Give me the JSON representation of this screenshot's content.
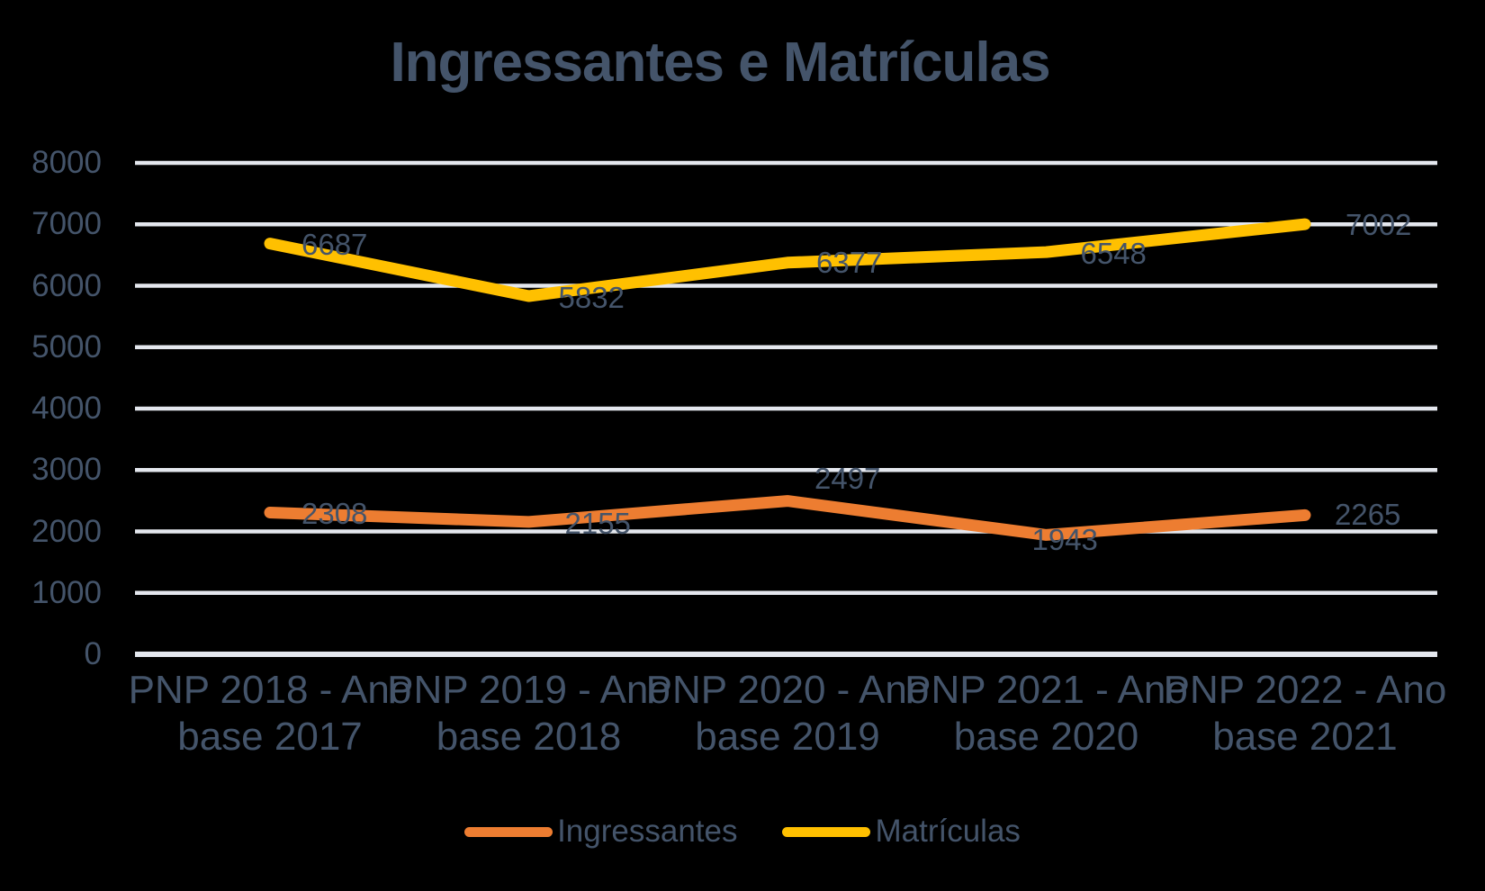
{
  "title": "Ingressantes e Matrículas",
  "colors": {
    "background": "#000000",
    "text": "#44546A",
    "gridline": "#E4E7EE",
    "series_ingressantes": "#ED7D31",
    "series_matriculas": "#FFC000"
  },
  "chart_data": {
    "type": "line",
    "title": "Ingressantes e Matrículas",
    "categories": [
      "PNP 2018 - Ano base 2017",
      "PNP 2019 - Ano base 2018",
      "PNP 2020 - Ano base 2019",
      "PNP 2021 - Ano base 2020",
      "PNP 2022 - Ano base 2021"
    ],
    "category_label_lines": [
      [
        "PNP 2018 - Ano",
        "base 2017"
      ],
      [
        "PNP 2019 - Ano",
        "base 2018"
      ],
      [
        "PNP 2020 - Ano",
        "base 2019"
      ],
      [
        "PNP 2021 - Ano",
        "base 2020"
      ],
      [
        "PNP 2022 - Ano",
        "base 2021"
      ]
    ],
    "series": [
      {
        "name": "Ingressantes",
        "color": "#ED7D31",
        "values": [
          2308,
          2155,
          2497,
          1943,
          2265
        ]
      },
      {
        "name": "Matrículas",
        "color": "#FFC000",
        "values": [
          6687,
          5832,
          6377,
          6548,
          7002
        ]
      }
    ],
    "xlabel": "",
    "ylabel": "",
    "ylim": [
      0,
      8000
    ],
    "yticks": [
      0,
      1000,
      2000,
      3000,
      4000,
      5000,
      6000,
      7000,
      8000
    ],
    "grid": "horizontal",
    "legend_position": "bottom",
    "data_labels_shown": true
  },
  "legend": {
    "items": [
      {
        "label": "Ingressantes",
        "color": "#ED7D31"
      },
      {
        "label": "Matrículas",
        "color": "#FFC000"
      }
    ]
  }
}
